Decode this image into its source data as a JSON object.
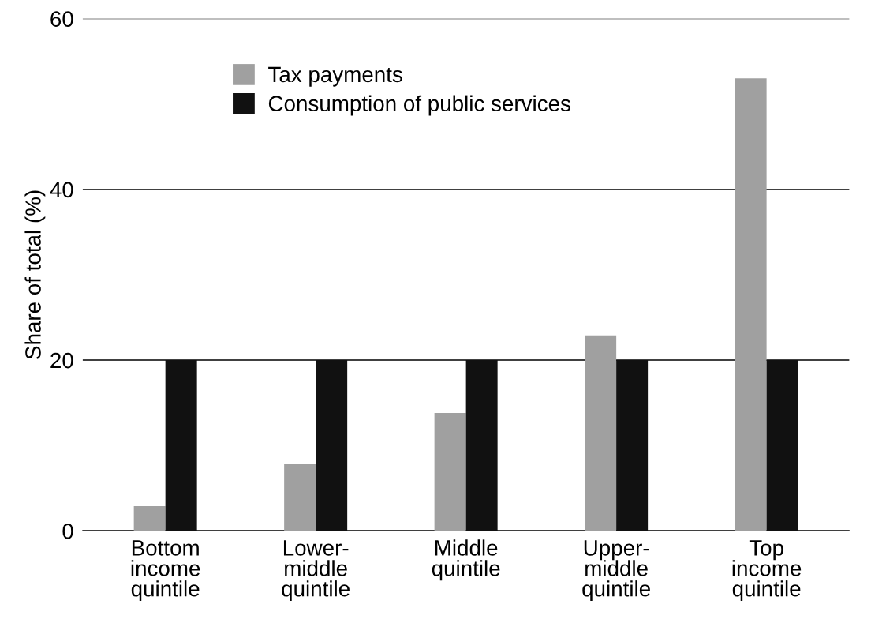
{
  "chart_data": {
    "type": "bar",
    "ylabel": "Share of total (%)",
    "categories": [
      "Bottom\nincome\nquintile",
      "Lower-\nmiddle\nquintile",
      "Middle\nquintile",
      "Upper-\nmiddle\nquintile",
      "Top\nincome\nquintile"
    ],
    "series": [
      {
        "name": "Tax payments",
        "color": "#a0a0a0",
        "values": [
          2.9,
          7.8,
          13.8,
          22.9,
          53
        ]
      },
      {
        "name": "Consumption of public services",
        "color": "#111111",
        "values": [
          20,
          20,
          20,
          20,
          20
        ]
      }
    ],
    "ylim": [
      0,
      60
    ],
    "yticks": [
      0,
      20,
      40,
      60
    ],
    "grid": "y",
    "legend": "top left"
  }
}
